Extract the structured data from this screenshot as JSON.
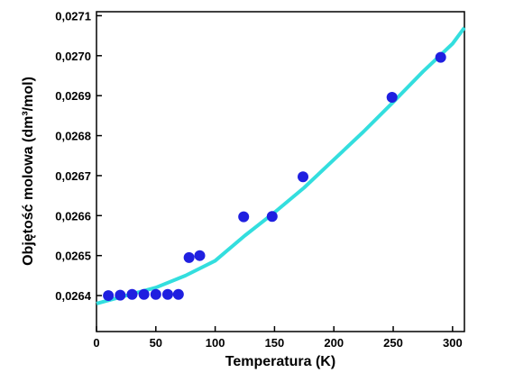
{
  "chart_data": {
    "type": "scatter",
    "xlabel": "Temperatura (K)",
    "ylabel": "Objętość molowa (dm³/mol)",
    "xlim": [
      0,
      310
    ],
    "xticks": [
      0,
      50,
      100,
      150,
      200,
      250,
      300
    ],
    "ylim": [
      0.02631,
      0.02711
    ],
    "yticks": [
      {
        "value": 0.0264,
        "label": "0,0264"
      },
      {
        "value": 0.0265,
        "label": "0,0265"
      },
      {
        "value": 0.0266,
        "label": "0,0266"
      },
      {
        "value": 0.0267,
        "label": "0,0267"
      },
      {
        "value": 0.0268,
        "label": "0,0268"
      },
      {
        "value": 0.0269,
        "label": "0,0269"
      },
      {
        "value": 0.027,
        "label": "0,0270"
      },
      {
        "value": 0.0271,
        "label": "0,0271"
      }
    ],
    "grid": false,
    "series": [
      {
        "style": "markers",
        "color": "#1f1fe0",
        "x": [
          10,
          20,
          30,
          40,
          50,
          60,
          69,
          78,
          87,
          124,
          148,
          174,
          249,
          290
        ],
        "values": [
          0.0264,
          0.026401,
          0.026403,
          0.026403,
          0.026403,
          0.026403,
          0.026403,
          0.026495,
          0.0265,
          0.026597,
          0.026598,
          0.026697,
          0.026896,
          0.026996
        ]
      },
      {
        "style": "line",
        "color": "#33dede",
        "x": [
          0,
          25,
          50,
          75,
          100,
          125,
          150,
          175,
          200,
          225,
          250,
          275,
          300,
          310
        ],
        "values": [
          0.02638,
          0.0264,
          0.02642,
          0.02645,
          0.026487,
          0.02655,
          0.026608,
          0.02667,
          0.02674,
          0.02681,
          0.026884,
          0.02696,
          0.02703,
          0.02707
        ]
      }
    ]
  }
}
